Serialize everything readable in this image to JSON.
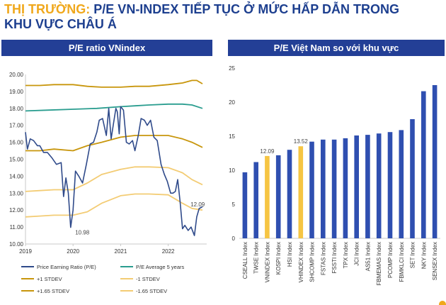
{
  "headline": {
    "accent": "THỊ TRƯỜNG:",
    "main": "P/E VN-INDEX TIẾP TỤC Ở MỨC HẤP DẪN TRONG",
    "line2": "KHU VỰC CHÂU Á"
  },
  "colors": {
    "header_bg": "#233f96",
    "pe_line": "#2f4a8a",
    "avg_line": "#2a9d8f",
    "plus1": "#c8960c",
    "plus165": "#c8960c",
    "minus1": "#f3cc74",
    "minus165": "#f3cc74",
    "bar_blue": "#2f4fb0",
    "bar_yellow": "#f6c543"
  },
  "chart_data": [
    {
      "type": "line",
      "title": "P/E ratio VNindex",
      "ylim": [
        10,
        20
      ],
      "y_ticks": [
        "10.00",
        "11.00",
        "12.00",
        "13.00",
        "14.00",
        "15.00",
        "16.00",
        "17.00",
        "18.00",
        "19.00",
        "20.00"
      ],
      "xlim": [
        2019,
        2022.75
      ],
      "x_ticks": [
        "2019",
        "2020",
        "2021",
        "2022"
      ],
      "grid": false,
      "legend_position": "bottom",
      "series": [
        {
          "name": "Price Earning Ratio (P/E)",
          "color": "#2f4a8a",
          "x": [
            2019.0,
            2019.04,
            2019.1,
            2019.17,
            2019.25,
            2019.3,
            2019.38,
            2019.46,
            2019.55,
            2019.65,
            2019.75,
            2019.8,
            2019.85,
            2019.9,
            2019.95,
            2020.0,
            2020.05,
            2020.12,
            2020.2,
            2020.28,
            2020.36,
            2020.43,
            2020.5,
            2020.55,
            2020.62,
            2020.7,
            2020.75,
            2020.8,
            2020.85,
            2020.9,
            2020.93,
            2020.97,
            2021.0,
            2021.06,
            2021.12,
            2021.18,
            2021.25,
            2021.3,
            2021.37,
            2021.43,
            2021.5,
            2021.56,
            2021.63,
            2021.7,
            2021.77,
            2021.85,
            2021.92,
            2021.98,
            2022.05,
            2022.1,
            2022.15,
            2022.2,
            2022.25,
            2022.3,
            2022.35,
            2022.42,
            2022.48,
            2022.55,
            2022.6,
            2022.65,
            2022.72
          ],
          "y": [
            16.6,
            15.6,
            16.2,
            16.1,
            15.8,
            15.8,
            15.4,
            15.4,
            15.1,
            14.7,
            14.8,
            12.8,
            13.9,
            13.0,
            10.98,
            12.0,
            14.3,
            14.0,
            13.6,
            14.7,
            15.9,
            16.0,
            16.6,
            17.3,
            17.4,
            16.4,
            18.0,
            16.2,
            17.1,
            18.0,
            17.8,
            16.5,
            18.1,
            17.9,
            16.0,
            15.9,
            16.1,
            15.5,
            16.4,
            17.4,
            17.3,
            17.0,
            17.3,
            16.3,
            16.1,
            14.7,
            14.1,
            13.7,
            13.0,
            13.0,
            13.1,
            13.8,
            12.5,
            10.9,
            11.1,
            10.8,
            11.0,
            10.5,
            11.6,
            12.09,
            12.2
          ]
        },
        {
          "name": "P/E Average 5 years",
          "color": "#2a9d8f",
          "x": [
            2019.0,
            2019.5,
            2020.0,
            2020.5,
            2021.0,
            2021.3,
            2021.6,
            2022.0,
            2022.3,
            2022.5,
            2022.72
          ],
          "y": [
            17.85,
            17.9,
            17.95,
            18.0,
            18.1,
            18.15,
            18.2,
            18.25,
            18.25,
            18.2,
            18.0
          ]
        },
        {
          "name": "+1 STDEV",
          "color": "#c8960c",
          "x": [
            2019.0,
            2019.3,
            2019.6,
            2020.0,
            2020.3,
            2020.6,
            2021.0,
            2021.3,
            2021.6,
            2022.0,
            2022.3,
            2022.5,
            2022.72
          ],
          "y": [
            15.5,
            15.5,
            15.6,
            15.5,
            15.8,
            16.0,
            16.3,
            16.4,
            16.4,
            16.4,
            16.2,
            16.0,
            15.7
          ]
        },
        {
          "name": "-1 STDEV",
          "color": "#f3cc74",
          "x": [
            2019.0,
            2019.3,
            2019.6,
            2020.0,
            2020.3,
            2020.6,
            2021.0,
            2021.3,
            2021.6,
            2022.0,
            2022.3,
            2022.5,
            2022.72
          ],
          "y": [
            13.1,
            13.15,
            13.2,
            13.2,
            13.6,
            14.1,
            14.4,
            14.55,
            14.55,
            14.5,
            14.2,
            13.8,
            13.5
          ]
        },
        {
          "name": "+1.65 STDEV",
          "color": "#c8960c",
          "x": [
            2019.0,
            2019.3,
            2019.6,
            2020.0,
            2020.3,
            2020.6,
            2021.0,
            2021.3,
            2021.6,
            2022.0,
            2022.3,
            2022.5,
            2022.6,
            2022.72
          ],
          "y": [
            19.35,
            19.35,
            19.4,
            19.4,
            19.3,
            19.25,
            19.25,
            19.3,
            19.3,
            19.4,
            19.5,
            19.65,
            19.65,
            19.45
          ]
        },
        {
          "name": "-1.65 STDEV",
          "color": "#f3cc74",
          "x": [
            2019.0,
            2019.3,
            2019.6,
            2020.0,
            2020.3,
            2020.6,
            2021.0,
            2021.3,
            2021.6,
            2022.0,
            2022.3,
            2022.5,
            2022.72
          ],
          "y": [
            11.6,
            11.65,
            11.7,
            11.7,
            11.9,
            12.4,
            12.85,
            12.95,
            12.95,
            12.9,
            12.4,
            12.1,
            12.0
          ]
        }
      ],
      "annotations": [
        {
          "text": "10.98",
          "x": 2020.0,
          "y": 10.98
        },
        {
          "text": "12.09",
          "x": 2022.62,
          "y": 12.09
        }
      ]
    },
    {
      "type": "bar",
      "title": "P/E Việt Nam so với khu vực",
      "ylim": [
        0,
        25
      ],
      "y_ticks": [
        "0",
        "5",
        "10",
        "15",
        "20",
        "25"
      ],
      "grid": false,
      "categories": [
        "CSEALL Index",
        "TWSE Index",
        "VNINDEX Index",
        "KOSPI Index",
        "HSI Index",
        "VHINDEX Index",
        "SHCOMP Index",
        "FSTAS Index",
        "FSSTI Index",
        "TPX Index",
        "JCI Index",
        "AS51 Index",
        "FBMEMAS Index",
        "PCOMP Index",
        "FBMKLCI Index",
        "SET Index",
        "NKY Index",
        "SENSEX Index"
      ],
      "values": [
        9.7,
        11.2,
        12.09,
        12.2,
        13.0,
        13.52,
        14.2,
        14.5,
        14.5,
        14.7,
        15.1,
        15.2,
        15.4,
        15.6,
        15.9,
        17.5,
        21.6,
        22.5
      ],
      "highlight": [
        2,
        5
      ],
      "data_labels": [
        {
          "index": 2,
          "text": "12.09"
        },
        {
          "index": 5,
          "text": "13.52"
        }
      ]
    }
  ]
}
